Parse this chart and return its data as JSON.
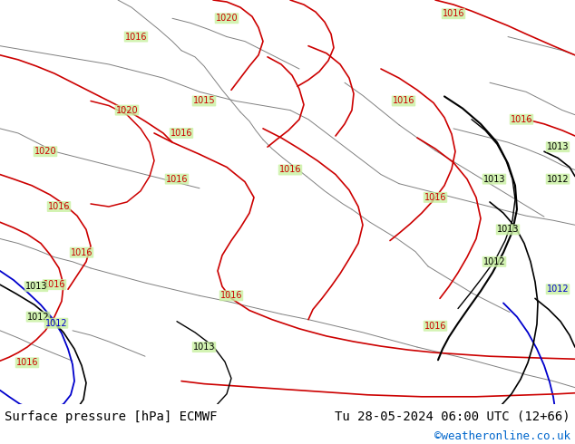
{
  "title_left": "Surface pressure [hPa] ECMWF",
  "title_right": "Tu 28-05-2024 06:00 UTC (12+66)",
  "watermark": "©weatheronline.co.uk",
  "bg_color": "#c8e6c9",
  "land_color": "#c8f0a0",
  "sea_color": "#d0e8d0",
  "border_color": "#808080",
  "contour_color_red": "#cc0000",
  "contour_color_black": "#000000",
  "contour_color_blue": "#0000cc",
  "title_fontsize": 11,
  "watermark_color": "#0066cc",
  "fig_width": 6.34,
  "fig_height": 4.9,
  "dpi": 100
}
